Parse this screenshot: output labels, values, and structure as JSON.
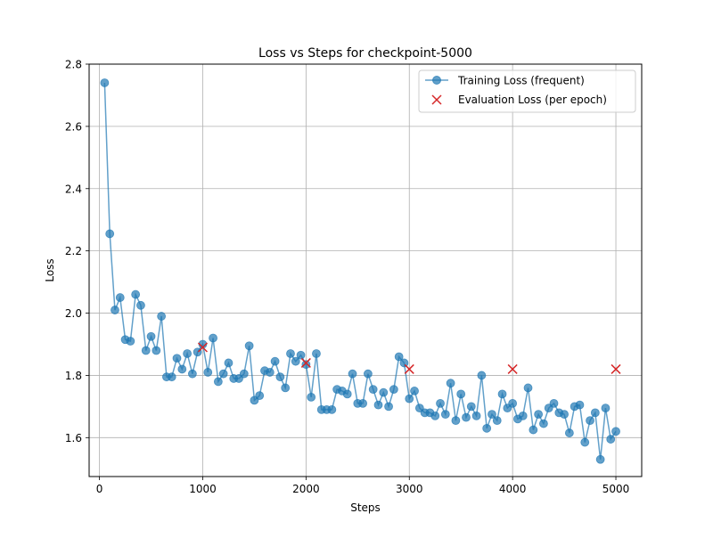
{
  "chart_data": {
    "type": "line",
    "title": "Loss vs Steps for checkpoint-5000",
    "xlabel": "Steps",
    "ylabel": "Loss",
    "xlim": [
      -100,
      5250
    ],
    "ylim": [
      1.475,
      2.8
    ],
    "xticks": [
      0,
      1000,
      2000,
      3000,
      4000,
      5000
    ],
    "yticks": [
      1.6,
      1.8,
      2.0,
      2.2,
      2.4,
      2.6,
      2.8
    ],
    "xtick_labels": [
      "0",
      "1000",
      "2000",
      "3000",
      "4000",
      "5000"
    ],
    "ytick_labels": [
      "1.6",
      "1.8",
      "2.0",
      "2.2",
      "2.4",
      "2.6",
      "2.8"
    ],
    "grid": true,
    "legend_position": "top-right",
    "series": [
      {
        "name": "Training Loss (frequent)",
        "kind": "line-markers",
        "color": "#1f77b4",
        "x": [
          50,
          100,
          150,
          200,
          250,
          300,
          350,
          400,
          450,
          500,
          550,
          600,
          650,
          700,
          750,
          800,
          850,
          900,
          950,
          1000,
          1050,
          1100,
          1150,
          1200,
          1250,
          1300,
          1350,
          1400,
          1450,
          1500,
          1550,
          1600,
          1650,
          1700,
          1750,
          1800,
          1850,
          1900,
          1950,
          2000,
          2050,
          2100,
          2150,
          2200,
          2250,
          2300,
          2350,
          2400,
          2450,
          2500,
          2550,
          2600,
          2650,
          2700,
          2750,
          2800,
          2850,
          2900,
          2950,
          3000,
          3050,
          3100,
          3150,
          3200,
          3250,
          3300,
          3350,
          3400,
          3450,
          3500,
          3550,
          3600,
          3650,
          3700,
          3750,
          3800,
          3850,
          3900,
          3950,
          4000,
          4050,
          4100,
          4150,
          4200,
          4250,
          4300,
          4350,
          4400,
          4450,
          4500,
          4550,
          4600,
          4650,
          4700,
          4750,
          4800,
          4850,
          4900,
          4950,
          5000
        ],
        "y": [
          2.74,
          2.255,
          2.01,
          2.05,
          1.915,
          1.91,
          2.06,
          2.025,
          1.88,
          1.925,
          1.88,
          1.99,
          1.795,
          1.795,
          1.855,
          1.82,
          1.87,
          1.805,
          1.875,
          1.9,
          1.81,
          1.92,
          1.78,
          1.805,
          1.84,
          1.79,
          1.79,
          1.805,
          1.895,
          1.72,
          1.735,
          1.815,
          1.81,
          1.845,
          1.795,
          1.76,
          1.87,
          1.845,
          1.865,
          1.835,
          1.73,
          1.87,
          1.69,
          1.69,
          1.69,
          1.755,
          1.75,
          1.74,
          1.805,
          1.71,
          1.71,
          1.805,
          1.755,
          1.705,
          1.745,
          1.7,
          1.755,
          1.86,
          1.84,
          1.725,
          1.75,
          1.695,
          1.68,
          1.68,
          1.67,
          1.71,
          1.675,
          1.775,
          1.655,
          1.74,
          1.665,
          1.7,
          1.67,
          1.8,
          1.63,
          1.675,
          1.655,
          1.74,
          1.695,
          1.71,
          1.66,
          1.67,
          1.76,
          1.625,
          1.675,
          1.645,
          1.695,
          1.71,
          1.68,
          1.675,
          1.615,
          1.7,
          1.705,
          1.585,
          1.655,
          1.68,
          1.53,
          1.695,
          1.595,
          1.62
        ]
      },
      {
        "name": "Evaluation Loss (per epoch)",
        "kind": "scatter-x",
        "color": "#d62728",
        "x": [
          1000,
          2000,
          3000,
          4000,
          5000
        ],
        "y": [
          1.89,
          1.84,
          1.82,
          1.82,
          1.82
        ]
      }
    ]
  }
}
